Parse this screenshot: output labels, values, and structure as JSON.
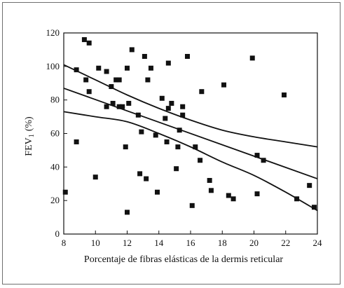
{
  "chart_data": {
    "type": "scatter",
    "xlabel": "Porcentaje de fibras elásticas de la dermis reticular",
    "ylabel": "FEV",
    "ylabel_subscript": "1",
    "ylabel_unit": "(%)",
    "xlim": [
      8,
      24
    ],
    "ylim": [
      0,
      120
    ],
    "x_ticks": [
      8,
      10,
      12,
      14,
      16,
      18,
      20,
      22,
      24
    ],
    "y_ticks": [
      0,
      20,
      40,
      60,
      80,
      100,
      120
    ],
    "grid": false,
    "point_color": "#111111",
    "points": [
      [
        8.1,
        25
      ],
      [
        8.8,
        98
      ],
      [
        8.8,
        55
      ],
      [
        9.3,
        116
      ],
      [
        9.4,
        92
      ],
      [
        9.6,
        114
      ],
      [
        9.6,
        85
      ],
      [
        10.0,
        34
      ],
      [
        10.2,
        99
      ],
      [
        10.7,
        97
      ],
      [
        10.7,
        76
      ],
      [
        11.0,
        88
      ],
      [
        11.1,
        78
      ],
      [
        11.3,
        92
      ],
      [
        11.5,
        92
      ],
      [
        11.5,
        76
      ],
      [
        11.7,
        76
      ],
      [
        11.9,
        52
      ],
      [
        12.0,
        99
      ],
      [
        12.0,
        13
      ],
      [
        12.1,
        78
      ],
      [
        12.3,
        110
      ],
      [
        12.7,
        71
      ],
      [
        12.8,
        36
      ],
      [
        12.9,
        61
      ],
      [
        13.1,
        106
      ],
      [
        13.2,
        33
      ],
      [
        13.3,
        92
      ],
      [
        13.5,
        99
      ],
      [
        13.8,
        59
      ],
      [
        13.9,
        25
      ],
      [
        14.2,
        81
      ],
      [
        14.4,
        69
      ],
      [
        14.5,
        55
      ],
      [
        14.6,
        75
      ],
      [
        14.6,
        102
      ],
      [
        14.8,
        78
      ],
      [
        15.1,
        39
      ],
      [
        15.2,
        52
      ],
      [
        15.3,
        62
      ],
      [
        15.5,
        71
      ],
      [
        15.5,
        76
      ],
      [
        15.8,
        106
      ],
      [
        16.1,
        17
      ],
      [
        16.3,
        52
      ],
      [
        16.6,
        44
      ],
      [
        16.7,
        85
      ],
      [
        17.2,
        32
      ],
      [
        17.3,
        26
      ],
      [
        18.1,
        89
      ],
      [
        18.4,
        23
      ],
      [
        18.7,
        21
      ],
      [
        19.9,
        105
      ],
      [
        20.2,
        47
      ],
      [
        20.2,
        24
      ],
      [
        20.6,
        44
      ],
      [
        21.9,
        83
      ],
      [
        22.7,
        21
      ],
      [
        23.5,
        29
      ],
      [
        23.8,
        16
      ]
    ],
    "lines": [
      {
        "role": "regression",
        "x": [
          8,
          24
        ],
        "y": [
          87,
          33
        ]
      },
      {
        "role": "upper-confidence-band",
        "x": [
          8,
          10,
          12,
          14,
          16,
          18,
          20,
          22,
          24
        ],
        "y": [
          101,
          92,
          83,
          75,
          68,
          62,
          58,
          55,
          52
        ]
      },
      {
        "role": "lower-confidence-band",
        "x": [
          8,
          10,
          12,
          14,
          16,
          18,
          20,
          22,
          24
        ],
        "y": [
          73,
          70,
          67,
          60,
          52,
          43,
          35,
          25,
          14
        ]
      }
    ]
  }
}
